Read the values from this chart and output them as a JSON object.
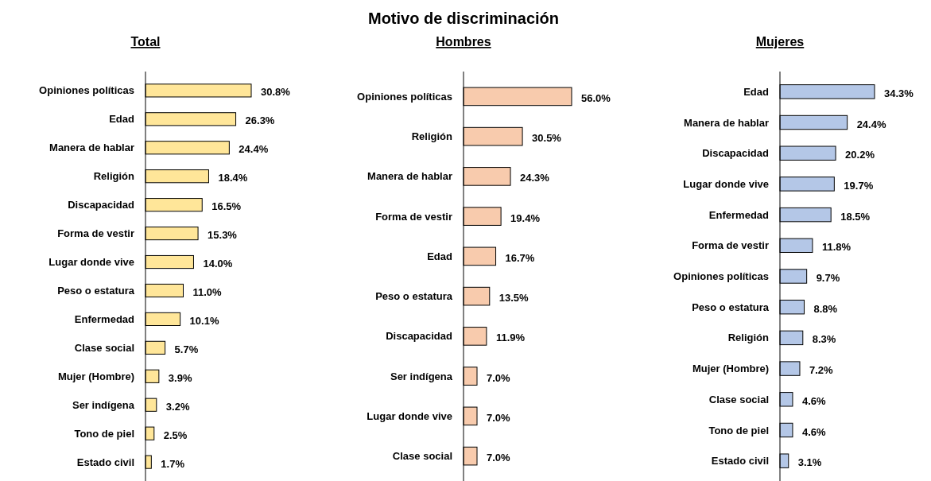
{
  "chart_data": [
    {
      "type": "bar",
      "orientation": "horizontal",
      "subtitle": "Total",
      "color": "#ffe699",
      "categories": [
        "Opiniones políticas",
        "Edad",
        "Manera de hablar",
        "Religión",
        "Discapacidad",
        "Forma de vestir",
        "Lugar donde vive",
        "Peso o estatura",
        "Enfermedad",
        "Clase social",
        "Mujer (Hombre)",
        "Ser indígena",
        "Tono de piel",
        "Estado civil"
      ],
      "values": [
        30.8,
        26.3,
        24.4,
        18.4,
        16.5,
        15.3,
        14.0,
        11.0,
        10.1,
        5.7,
        3.9,
        3.2,
        2.5,
        1.7
      ],
      "value_labels": [
        "30.8%",
        "26.3%",
        "24.4%",
        "18.4%",
        "16.5%",
        "15.3%",
        "14.0%",
        "11.0%",
        "10.1%",
        "5.7%",
        "3.9%",
        "3.2%",
        "2.5%",
        "1.7%"
      ]
    },
    {
      "type": "bar",
      "orientation": "horizontal",
      "title": "Motivo de discriminación",
      "subtitle": "Hombres",
      "color": "#f8cbad",
      "categories": [
        "Opiniones políticas",
        "Religión",
        "Manera de hablar",
        "Forma de vestir",
        "Edad",
        "Peso o estatura",
        "Discapacidad",
        "Ser indígena",
        "Lugar donde vive",
        "Clase social"
      ],
      "values": [
        56.0,
        30.5,
        24.3,
        19.4,
        16.7,
        13.5,
        11.9,
        7.0,
        7.0,
        7.0
      ],
      "value_labels": [
        "56.0%",
        "30.5%",
        "24.3%",
        "19.4%",
        "16.7%",
        "13.5%",
        "11.9%",
        "7.0%",
        "7.0%",
        "7.0%"
      ]
    },
    {
      "type": "bar",
      "orientation": "horizontal",
      "subtitle": "Mujeres",
      "color": "#b4c7e7",
      "categories": [
        "Edad",
        "Manera de hablar",
        "Discapacidad",
        "Lugar donde vive",
        "Enfermedad",
        "Forma de vestir",
        "Opiniones políticas",
        "Peso o estatura",
        "Religión",
        "Mujer (Hombre)",
        "Clase social",
        "Tono de piel",
        "Estado civil"
      ],
      "values": [
        34.3,
        24.4,
        20.2,
        19.7,
        18.5,
        11.8,
        9.7,
        8.8,
        8.3,
        7.2,
        4.6,
        4.6,
        3.1
      ],
      "value_labels": [
        "34.3%",
        "24.4%",
        "20.2%",
        "19.7%",
        "18.5%",
        "11.8%",
        "9.7%",
        "8.8%",
        "8.3%",
        "7.2%",
        "4.6%",
        "4.6%",
        "3.1%"
      ]
    }
  ]
}
